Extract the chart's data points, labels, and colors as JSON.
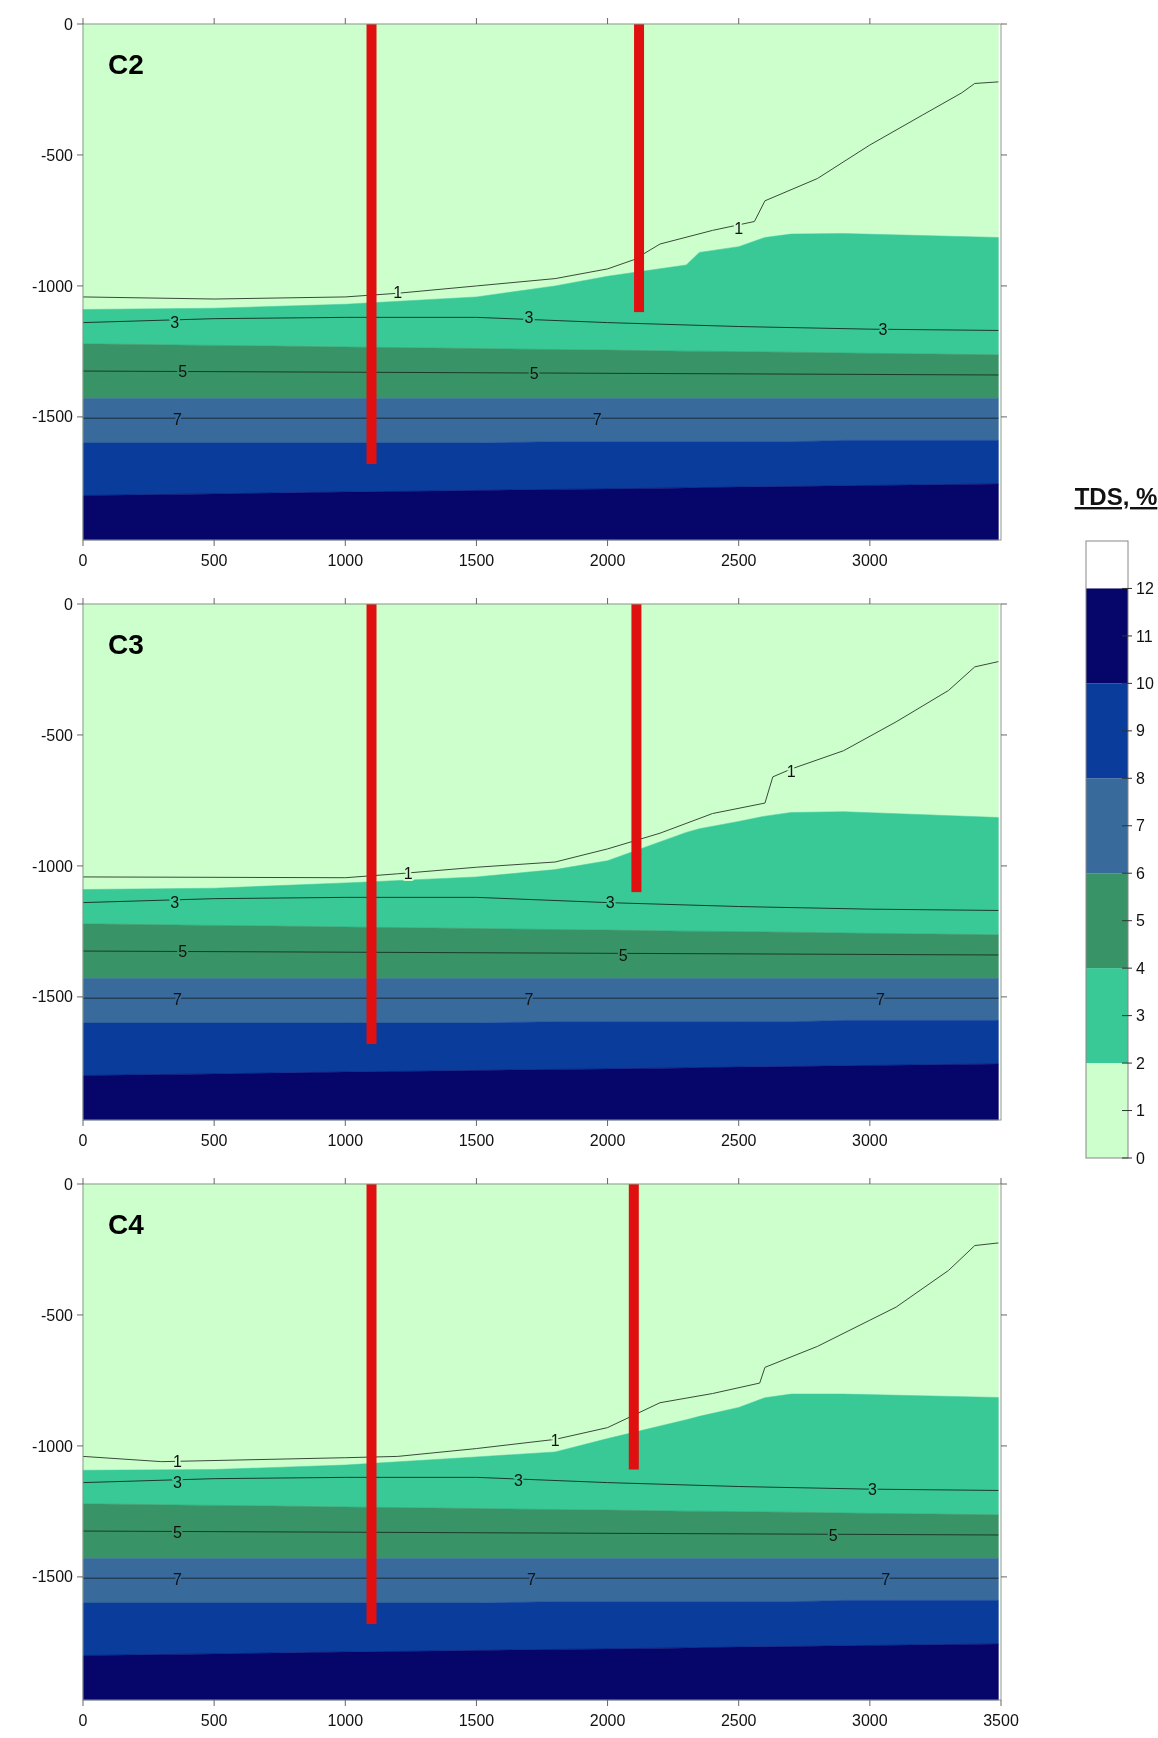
{
  "chart_data": [
    {
      "type": "area",
      "title": "C2",
      "stacked": true,
      "xlim": [
        0,
        3500
      ],
      "ylim": [
        -1970,
        0
      ],
      "xticks": [
        0,
        500,
        1000,
        1500,
        2000,
        2500,
        3000
      ],
      "yticks": [
        0,
        -500,
        -1000,
        -1500
      ],
      "x": [
        0,
        500,
        1000,
        1500,
        1800,
        2000,
        2300,
        2350,
        2500,
        2600,
        2700,
        2900,
        3490
      ],
      "series": [
        {
          "color": "#ccffcc",
          "values": [
            -1090,
            -1085,
            -1070,
            -1042,
            -1000,
            -963,
            -920,
            -872,
            -850,
            -815,
            -802,
            -800,
            -815
          ]
        },
        {
          "color": "#38c997",
          "values": [
            -131,
            -142,
            -163,
            -197,
            -243,
            -282,
            -329,
            -377,
            -401,
            -437,
            -451,
            -456,
            -448
          ]
        },
        {
          "color": "#389466",
          "values": [
            -209,
            -203,
            -197,
            -191,
            -187,
            -185,
            -181,
            -181,
            -179,
            -178,
            -177,
            -174,
            -167
          ]
        },
        {
          "color": "#386a9c",
          "values": [
            -170,
            -170,
            -170,
            -170,
            -165,
            -165,
            -165,
            -165,
            -165,
            -165,
            -165,
            -160,
            -160
          ]
        },
        {
          "color": "#0a3c9c",
          "values": [
            -200,
            -194,
            -187,
            -181,
            -182,
            -180,
            -176,
            -175,
            -173,
            -172,
            -171,
            -173,
            -166
          ]
        },
        {
          "color": "#05056a",
          "values": [
            -170,
            -176,
            -183,
            -189,
            -193,
            -195,
            -199,
            -200,
            -202,
            -203,
            -204,
            -207,
            -214
          ]
        },
        {
          "type": "line",
          "color": "#3a4a3a",
          "x": [
            0,
            500,
            1000,
            1200,
            1500,
            1800,
            2000,
            2100,
            2200,
            2400,
            2560,
            2600,
            2800,
            3000,
            3200,
            3350,
            3400,
            3490
          ],
          "values": [
            -1042,
            -1050,
            -1042,
            -1028,
            -1000,
            -972,
            -935,
            -900,
            -840,
            -788,
            -754,
            -675,
            -590,
            -462,
            -348,
            -263,
            -227,
            -221
          ]
        },
        {
          "type": "line",
          "color": "#1a3a2a",
          "x": [
            0,
            500,
            1000,
            1500,
            2000,
            2500,
            3000,
            3490
          ],
          "values": [
            -1140,
            -1125,
            -1120,
            -1120,
            -1140,
            -1155,
            -1165,
            -1170
          ]
        },
        {
          "type": "line",
          "color": "#1a3a2a",
          "x": [
            0,
            3490
          ],
          "values": [
            -1325,
            -1340
          ]
        },
        {
          "type": "line",
          "color": "#1a2a3a",
          "x": [
            0,
            3490
          ],
          "values": [
            -1505,
            -1505
          ]
        },
        {
          "type": "bar",
          "color": "#e01010",
          "x": [
            1100,
            2120
          ],
          "values": [
            -1680,
            -1100
          ]
        }
      ],
      "annotations": [
        {
          "text": "1",
          "x": 1200,
          "y": -1025
        },
        {
          "text": "1",
          "x": 2500,
          "y": -780
        },
        {
          "text": "3",
          "x": 350,
          "y": -1140
        },
        {
          "text": "3",
          "x": 1700,
          "y": -1120
        },
        {
          "text": "3",
          "x": 3050,
          "y": -1165
        },
        {
          "text": "5",
          "x": 380,
          "y": -1325
        },
        {
          "text": "5",
          "x": 1720,
          "y": -1335
        },
        {
          "text": "7",
          "x": 360,
          "y": -1510
        },
        {
          "text": "7",
          "x": 1960,
          "y": -1510
        }
      ]
    },
    {
      "type": "area",
      "title": "C3",
      "stacked": true,
      "xlim": [
        0,
        3500
      ],
      "ylim": [
        -1970,
        0
      ],
      "xticks": [
        0,
        500,
        1000,
        1500,
        2000,
        2500,
        3000
      ],
      "yticks": [
        0,
        -500,
        -1000,
        -1500
      ],
      "clabel": "TDS, %",
      "clim": [
        0,
        13
      ],
      "cticks": [
        0,
        1,
        2,
        3,
        4,
        5,
        6,
        7,
        8,
        9,
        10,
        11,
        12
      ],
      "x": [
        0,
        500,
        1000,
        1500,
        1800,
        2000,
        2300,
        2350,
        2500,
        2600,
        2700,
        2900,
        3490
      ],
      "series": [
        {
          "color": "#ccffcc",
          "values": [
            -1090,
            -1085,
            -1065,
            -1042,
            -1014,
            -980,
            -872,
            -858,
            -830,
            -810,
            -796,
            -793,
            -815
          ]
        },
        {
          "color": "#38c997",
          "values": [
            -131,
            -142,
            -168,
            -197,
            -229,
            -265,
            -377,
            -391,
            -421,
            -442,
            -457,
            -463,
            -448
          ]
        },
        {
          "color": "#389466",
          "values": [
            -209,
            -203,
            -197,
            -191,
            -187,
            -185,
            -181,
            -181,
            -179,
            -178,
            -177,
            -174,
            -167
          ]
        },
        {
          "color": "#386a9c",
          "values": [
            -170,
            -170,
            -170,
            -170,
            -165,
            -165,
            -165,
            -165,
            -165,
            -165,
            -165,
            -160,
            -160
          ]
        },
        {
          "color": "#0a3c9c",
          "values": [
            -200,
            -194,
            -187,
            -181,
            -182,
            -180,
            -176,
            -175,
            -173,
            -172,
            -171,
            -173,
            -166
          ]
        },
        {
          "color": "#05056a",
          "values": [
            -170,
            -176,
            -183,
            -189,
            -193,
            -195,
            -199,
            -200,
            -202,
            -203,
            -204,
            -207,
            -214
          ]
        },
        {
          "type": "line",
          "color": "#3a4a3a",
          "x": [
            0,
            1000,
            1200,
            1500,
            1800,
            2000,
            2200,
            2400,
            2600,
            2630,
            2700,
            2900,
            3100,
            3300,
            3400,
            3490
          ],
          "values": [
            -1042,
            -1045,
            -1030,
            -1005,
            -985,
            -935,
            -875,
            -800,
            -760,
            -660,
            -630,
            -560,
            -450,
            -330,
            -240,
            -220
          ]
        },
        {
          "type": "line",
          "color": "#1a3a2a",
          "x": [
            0,
            500,
            1000,
            1500,
            2000,
            2500,
            3000,
            3490
          ],
          "values": [
            -1140,
            -1125,
            -1120,
            -1120,
            -1140,
            -1155,
            -1165,
            -1170
          ]
        },
        {
          "type": "line",
          "color": "#1a3a2a",
          "x": [
            0,
            3490
          ],
          "values": [
            -1325,
            -1340
          ]
        },
        {
          "type": "line",
          "color": "#1a2a3a",
          "x": [
            0,
            3490
          ],
          "values": [
            -1505,
            -1505
          ]
        },
        {
          "type": "bar",
          "color": "#e01010",
          "x": [
            1100,
            2110
          ],
          "values": [
            -1680,
            -1100
          ]
        }
      ],
      "annotations": [
        {
          "text": "1",
          "x": 1240,
          "y": -1030
        },
        {
          "text": "1",
          "x": 2700,
          "y": -640
        },
        {
          "text": "3",
          "x": 350,
          "y": -1140
        },
        {
          "text": "3",
          "x": 2010,
          "y": -1140
        },
        {
          "text": "5",
          "x": 380,
          "y": -1325
        },
        {
          "text": "5",
          "x": 2060,
          "y": -1340
        },
        {
          "text": "7",
          "x": 360,
          "y": -1510
        },
        {
          "text": "7",
          "x": 1700,
          "y": -1510
        },
        {
          "text": "7",
          "x": 3040,
          "y": -1510
        }
      ]
    },
    {
      "type": "area",
      "title": "C4",
      "stacked": true,
      "xlim": [
        0,
        3500
      ],
      "ylim": [
        -1970,
        0
      ],
      "xticks": [
        0,
        500,
        1000,
        1500,
        2000,
        2500,
        3000,
        3500
      ],
      "yticks": [
        0,
        -500,
        -1000,
        -1500
      ],
      "x": [
        0,
        500,
        1000,
        1500,
        1800,
        2000,
        2300,
        2350,
        2500,
        2600,
        2700,
        2900,
        3490
      ],
      "series": [
        {
          "color": "#ccffcc",
          "values": [
            -1093,
            -1090,
            -1073,
            -1042,
            -1023,
            -972,
            -900,
            -887,
            -853,
            -816,
            -802,
            -802,
            -815
          ]
        },
        {
          "color": "#38c997",
          "values": [
            -128,
            -137,
            -160,
            -197,
            -220,
            -273,
            -349,
            -362,
            -398,
            -436,
            -451,
            -454,
            -448
          ]
        },
        {
          "color": "#389466",
          "values": [
            -209,
            -203,
            -197,
            -191,
            -187,
            -185,
            -181,
            -181,
            -179,
            -178,
            -177,
            -174,
            -167
          ]
        },
        {
          "color": "#386a9c",
          "values": [
            -170,
            -170,
            -170,
            -170,
            -165,
            -165,
            -165,
            -165,
            -165,
            -165,
            -165,
            -160,
            -160
          ]
        },
        {
          "color": "#0a3c9c",
          "values": [
            -200,
            -194,
            -187,
            -181,
            -182,
            -180,
            -176,
            -175,
            -173,
            -172,
            -171,
            -173,
            -166
          ]
        },
        {
          "color": "#05056a",
          "values": [
            -170,
            -176,
            -183,
            -189,
            -193,
            -195,
            -199,
            -200,
            -202,
            -203,
            -204,
            -207,
            -214
          ]
        },
        {
          "type": "line",
          "color": "#3a4a3a",
          "x": [
            0,
            300,
            1000,
            1200,
            1500,
            1800,
            2000,
            2200,
            2400,
            2580,
            2600,
            2800,
            3000,
            3100,
            3300,
            3400,
            3490
          ],
          "values": [
            -1040,
            -1060,
            -1045,
            -1040,
            -1010,
            -975,
            -930,
            -835,
            -800,
            -760,
            -700,
            -620,
            -520,
            -470,
            -330,
            -235,
            -225
          ]
        },
        {
          "type": "line",
          "color": "#1a3a2a",
          "x": [
            0,
            500,
            1000,
            1500,
            2000,
            2500,
            3000,
            3490
          ],
          "values": [
            -1140,
            -1125,
            -1120,
            -1120,
            -1140,
            -1155,
            -1165,
            -1170
          ]
        },
        {
          "type": "line",
          "color": "#1a3a2a",
          "x": [
            0,
            3490
          ],
          "values": [
            -1325,
            -1340
          ]
        },
        {
          "type": "line",
          "color": "#1a2a3a",
          "x": [
            0,
            3490
          ],
          "values": [
            -1505,
            -1505
          ]
        },
        {
          "type": "bar",
          "color": "#e01010",
          "x": [
            1100,
            2100
          ],
          "values": [
            -1680,
            -1090
          ]
        }
      ],
      "annotations": [
        {
          "text": "1",
          "x": 360,
          "y": -1060
        },
        {
          "text": "1",
          "x": 1800,
          "y": -980
        },
        {
          "text": "3",
          "x": 360,
          "y": -1140
        },
        {
          "text": "3",
          "x": 1660,
          "y": -1130
        },
        {
          "text": "3",
          "x": 3010,
          "y": -1165
        },
        {
          "text": "5",
          "x": 360,
          "y": -1330
        },
        {
          "text": "5",
          "x": 2860,
          "y": -1340
        },
        {
          "text": "7",
          "x": 360,
          "y": -1510
        },
        {
          "text": "7",
          "x": 1710,
          "y": -1510
        },
        {
          "text": "7",
          "x": 3060,
          "y": -1510
        }
      ]
    }
  ]
}
